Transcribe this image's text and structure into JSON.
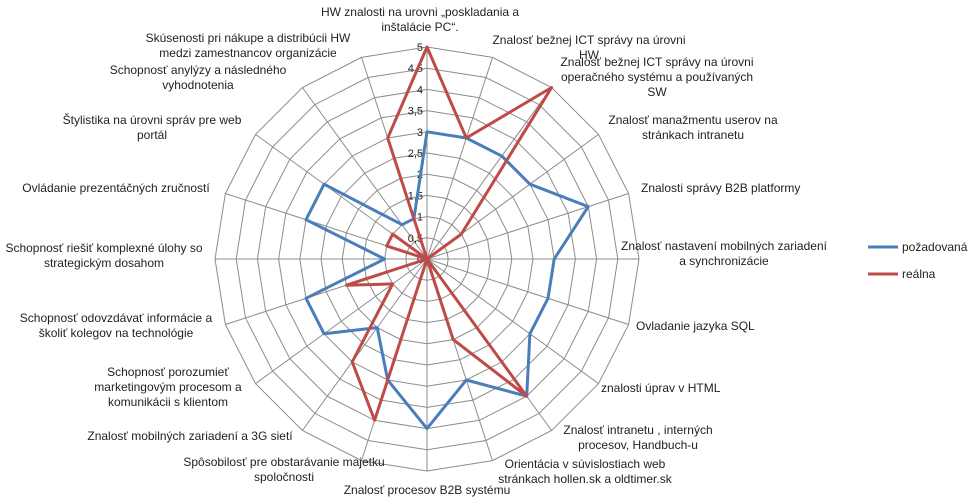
{
  "chart_data": {
    "type": "radar",
    "categories": [
      "HW znalosti na urovni „poskladania  a\ninštalácie PC“.",
      "Znalosť bežnej ICT správy na úrovni\nHW",
      "Znalosť bežnej ICT správy na úrovni\noperačného systému  a používaných\nSW",
      "Znalosť manažmentu userov na\nstránkach intranetu",
      "Znalosti správy B2B platformy",
      "Znalosť nastavení mobilných zariadení\na synchronizácie",
      "Ovladanie jazyka SQL",
      "znalosti úprav v HTML",
      "Znalosť  intranetu ,  interných\nprocesov, Handbuch-u",
      "Orientácia v súvislostiach  web\nstránkach hollen.sk a oldtimer.sk",
      "Znalosť procesov B2B systému",
      "Spôsobilosť pre obstarávanie majetku\nspoločnosti",
      "Znalosť mobilných zariadení a 3G sietí",
      "Schopnosť porozumieť\nmarketingovým procesom a\nkomunikácii s klientom",
      "Schopnosť odovzdávať informácie a\nškoliť kolegov na technológie",
      "Schopnosť riešiť komplexné úlohy so\nstrategickým dosahom",
      "Ovládanie  prezentáčných zručností",
      "Štylistika na úrovni správ pre web\nportál",
      "Schopnosť anylýzy a následného\nvyhodnotenia",
      "Skúsenosti pri nákupe a distribúcii HW\nmedzi zamestnancov organizácie"
    ],
    "series": [
      {
        "name": "požadovaná",
        "color": "#4a7ebb",
        "values": [
          3,
          3,
          3,
          3,
          4,
          3,
          3,
          3,
          4,
          3,
          4,
          3,
          2,
          3,
          3,
          1,
          3,
          3,
          1,
          1
        ]
      },
      {
        "name": "reálna",
        "color": "#be4b48",
        "values": [
          5,
          3,
          5,
          1,
          0,
          0,
          0,
          0,
          4,
          2,
          0,
          4,
          3,
          1,
          2,
          0,
          1,
          1,
          0,
          3
        ]
      }
    ],
    "r_ticks": [
      "0",
      "0,5",
      "1",
      "1,5",
      "2",
      "2,5",
      "3",
      "3,5",
      "4",
      "4,5",
      "5"
    ],
    "r_range": [
      0,
      5
    ],
    "grid": true,
    "legend_position": "right"
  }
}
